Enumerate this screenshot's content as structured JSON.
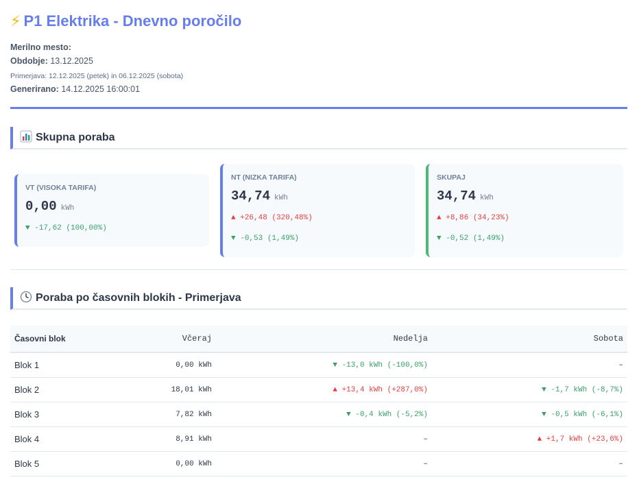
{
  "header": {
    "icon": "lightning-icon",
    "title": "P1 Elektrika - Dnevno poročilo",
    "meter_label": "Merilno mesto:",
    "meter_value": "",
    "period_label": "Obdobje:",
    "period_value": "13.12.2025",
    "comparison": "Primerjava: 12.12.2025 (petek) in 06.12.2025 (sobota)",
    "generated_label": "Generirano:",
    "generated_value": "14.12.2025 16:00:01"
  },
  "total_section": {
    "icon": "bar-chart-icon",
    "title": "Skupna poraba",
    "cards": [
      {
        "label": "VT (VISOKA TARIFA)",
        "value": "0,00",
        "unit": "kWh",
        "changes": [
          {
            "arrow": "▼",
            "text": "-17,62 (100,00%)",
            "direction": "down"
          }
        ]
      },
      {
        "label": "NT (NIZKA TARIFA)",
        "value": "34,74",
        "unit": "kWh",
        "changes": [
          {
            "arrow": "▲",
            "text": "+26,48 (320,48%)",
            "direction": "up"
          },
          {
            "arrow": "▼",
            "text": "-0,53 (1,49%)",
            "direction": "down"
          }
        ]
      },
      {
        "label": "SKUPAJ",
        "value": "34,74",
        "unit": "kWh",
        "changes": [
          {
            "arrow": "▲",
            "text": "+8,86 (34,23%)",
            "direction": "up"
          },
          {
            "arrow": "▼",
            "text": "-0,52 (1,49%)",
            "direction": "down"
          }
        ]
      }
    ]
  },
  "blocks_section": {
    "icon": "clock-icon",
    "title": "Poraba po časovnih blokih - Primerjava",
    "columns": [
      "Časovni blok",
      "Včeraj",
      "Nedelja",
      "Sobota"
    ],
    "rows": [
      {
        "block": "Blok 1",
        "yesterday": "0,00 kWh",
        "sunday": {
          "text": "▼ -13,0 kWh (-100,0%)",
          "direction": "down"
        },
        "saturday": {
          "text": "–",
          "direction": "neutral"
        }
      },
      {
        "block": "Blok 2",
        "yesterday": "18,01 kWh",
        "sunday": {
          "text": "▲ +13,4 kWh (+287,0%)",
          "direction": "up"
        },
        "saturday": {
          "text": "▼ -1,7 kWh (-8,7%)",
          "direction": "down"
        }
      },
      {
        "block": "Blok 3",
        "yesterday": "7,82 kWh",
        "sunday": {
          "text": "▼ -0,4 kWh (-5,2%)",
          "direction": "down"
        },
        "saturday": {
          "text": "▼ -0,5 kWh (-6,1%)",
          "direction": "down"
        }
      },
      {
        "block": "Blok 4",
        "yesterday": "8,91 kWh",
        "sunday": {
          "text": "–",
          "direction": "neutral"
        },
        "saturday": {
          "text": "▲ +1,7 kWh (+23,6%)",
          "direction": "up"
        }
      },
      {
        "block": "Blok 5",
        "yesterday": "0,00 kWh",
        "sunday": {
          "text": "–",
          "direction": "neutral"
        },
        "saturday": {
          "text": "–",
          "direction": "neutral"
        }
      }
    ]
  },
  "colors": {
    "accent": "#667eea",
    "up": "#e53e3e",
    "down": "#38a169",
    "total_card": "#48bb78"
  }
}
